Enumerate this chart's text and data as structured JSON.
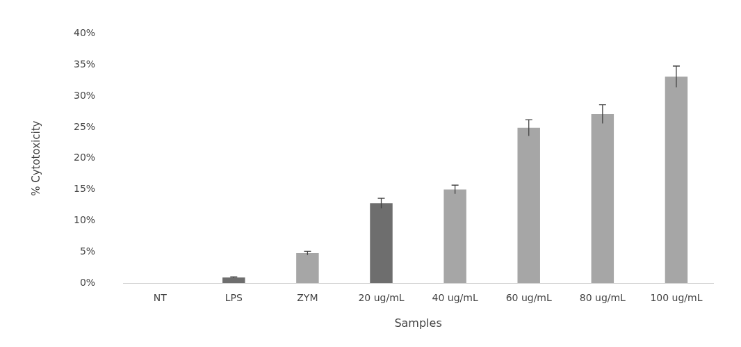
{
  "chart_data": {
    "type": "bar",
    "xlabel": "Samples",
    "ylabel": "% Cytotoxicity",
    "categories": [
      "NT",
      "LPS",
      "ZYM",
      "20 ug/mL",
      "40 ug/mL",
      "60 ug/mL",
      "80 ug/mL",
      "100 ug/mL"
    ],
    "values": [
      0,
      0.9,
      4.8,
      12.8,
      15,
      24.9,
      27.1,
      33.1
    ],
    "errors": [
      null,
      0.1,
      0.3,
      0.8,
      0.7,
      1.3,
      1.5,
      1.7
    ],
    "colors": [
      "#a6a6a6",
      "#6e6e6e",
      "#a6a6a6",
      "#6e6e6e",
      "#a6a6a6",
      "#a6a6a6",
      "#a6a6a6",
      "#a6a6a6"
    ],
    "ylim": [
      0,
      40
    ],
    "yticks": [
      {
        "value": 0,
        "label": "0%"
      },
      {
        "value": 5,
        "label": "5%"
      },
      {
        "value": 10,
        "label": "10%"
      },
      {
        "value": 15,
        "label": "15%"
      },
      {
        "value": 20,
        "label": "20%"
      },
      {
        "value": 25,
        "label": "25%"
      },
      {
        "value": 30,
        "label": "30%"
      },
      {
        "value": 35,
        "label": "35%"
      },
      {
        "value": 40,
        "label": "40%"
      }
    ],
    "grid": false,
    "legend": false
  }
}
